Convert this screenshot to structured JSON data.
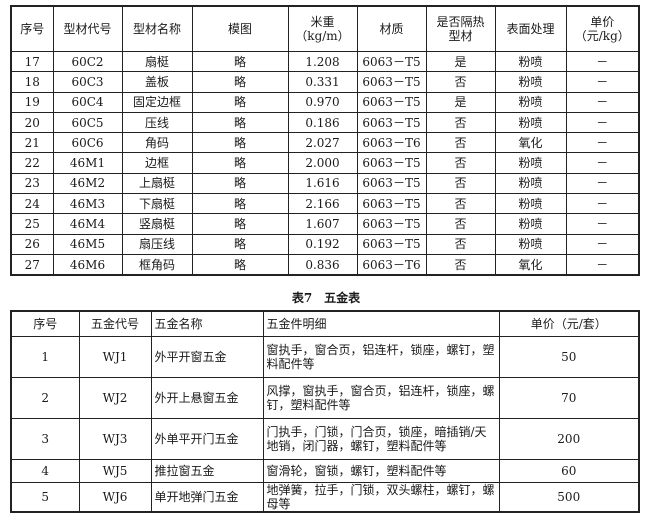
{
  "profile_table": {
    "headers": [
      "序号",
      "型材代号",
      "型材名称",
      "模图",
      "米重\n（kg/m）",
      "材质",
      "是否隔热\n型材",
      "表面处理",
      "单价\n（元/kg）"
    ],
    "rows": [
      [
        "17",
        "60C2",
        "扇梃",
        "略",
        "1.208",
        "6063－T5",
        "是",
        "粉喷",
        "－"
      ],
      [
        "18",
        "60C3",
        "盖板",
        "略",
        "0.331",
        "6063－T5",
        "否",
        "粉喷",
        "－"
      ],
      [
        "19",
        "60C4",
        "固定边框",
        "略",
        "0.970",
        "6063－T5",
        "是",
        "粉喷",
        "－"
      ],
      [
        "20",
        "60C5",
        "压线",
        "略",
        "0.186",
        "6063－T5",
        "否",
        "粉喷",
        "－"
      ],
      [
        "21",
        "60C6",
        "角码",
        "略",
        "2.027",
        "6063－T6",
        "否",
        "氧化",
        "－"
      ],
      [
        "22",
        "46M1",
        "边框",
        "略",
        "2.000",
        "6063－T5",
        "否",
        "粉喷",
        "－"
      ],
      [
        "23",
        "46M2",
        "上扇梃",
        "略",
        "1.616",
        "6063－T5",
        "否",
        "粉喷",
        "－"
      ],
      [
        "24",
        "46M3",
        "下扇梃",
        "略",
        "2.166",
        "6063－T5",
        "否",
        "粉喷",
        "－"
      ],
      [
        "25",
        "46M4",
        "竖扇梃",
        "略",
        "1.607",
        "6063－T5",
        "否",
        "粉喷",
        "－"
      ],
      [
        "26",
        "46M5",
        "扇压线",
        "略",
        "0.192",
        "6063－T5",
        "否",
        "粉喷",
        "－"
      ],
      [
        "27",
        "46M6",
        "框角码",
        "略",
        "0.836",
        "6063－T6",
        "否",
        "氧化",
        "－"
      ]
    ]
  },
  "hardware_table": {
    "caption": "表7　五金表",
    "headers": [
      "序号",
      "五金代号",
      "五金名称",
      "五金件明细",
      "单价（元/套）"
    ],
    "rows": [
      [
        "1",
        "WJ1",
        "外平开窗五金",
        "窗执手，窗合页，铝连杆，锁座，螺钉，塑料配件等",
        "50"
      ],
      [
        "2",
        "WJ2",
        "外开上悬窗五金",
        "风撑，窗执手，窗合页，铝连杆，锁座，螺钉，塑料配件等",
        "70"
      ],
      [
        "3",
        "WJ3",
        "外单平开门五金",
        "门执手，门锁，门合页，锁座，暗插销/天地销，闭门器，螺钉，塑料配件等",
        "200"
      ],
      [
        "4",
        "WJ5",
        "推拉窗五金",
        "窗滑轮，窗锁，螺钉，塑料配件等",
        "60"
      ],
      [
        "5",
        "WJ6",
        "单开地弹门五金",
        "地弹簧，拉手，门锁，双头螺柱，螺钉，螺母等",
        "500"
      ]
    ]
  }
}
